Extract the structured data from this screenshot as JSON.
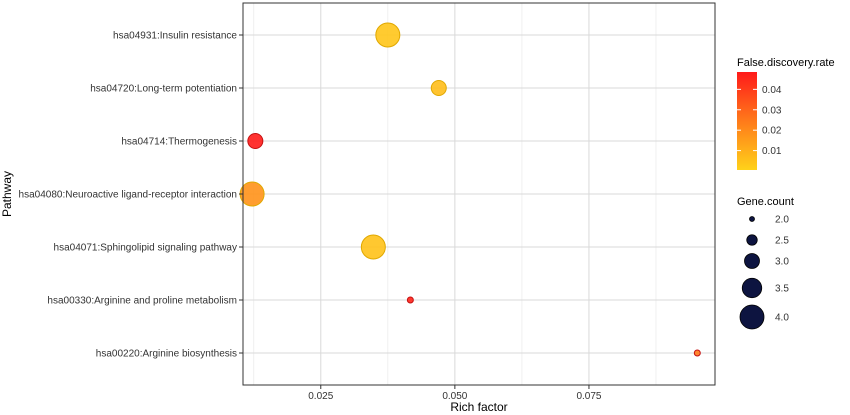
{
  "chart_data": {
    "type": "scatter",
    "xlabel": "Rich factor",
    "ylabel": "Pathway",
    "xlim": [
      0.0105,
      0.0985
    ],
    "x_ticks": [
      0.025,
      0.05,
      0.075
    ],
    "x_tick_labels": [
      "0.025",
      "0.050",
      "0.075"
    ],
    "grid": true,
    "categories": [
      "hsa04931:Insulin resistance",
      "hsa04720:Long-term potentiation",
      "hsa04714:Thermogenesis",
      "hsa04080:Neuroactive ligand-receptor interaction",
      "hsa04071:Sphingolipid signaling pathway",
      "hsa00330:Arginine and proline metabolism",
      "hsa00220:Arginine biosynthesis"
    ],
    "points": [
      {
        "pathway": "hsa04931:Insulin resistance",
        "x": 0.0375,
        "gene_count": 4,
        "fdr": 0.004
      },
      {
        "pathway": "hsa04720:Long-term potentiation",
        "x": 0.047,
        "gene_count": 3,
        "fdr": 0.006
      },
      {
        "pathway": "hsa04714:Thermogenesis",
        "x": 0.0128,
        "gene_count": 3,
        "fdr": 0.048
      },
      {
        "pathway": "hsa04080:Neuroactive ligand-receptor interaction",
        "x": 0.0122,
        "gene_count": 4,
        "fdr": 0.018
      },
      {
        "pathway": "hsa04071:Sphingolipid signaling pathway",
        "x": 0.0348,
        "gene_count": 4,
        "fdr": 0.005
      },
      {
        "pathway": "hsa00330:Arginine and proline metabolism",
        "x": 0.0417,
        "gene_count": 2,
        "fdr": 0.046
      },
      {
        "pathway": "hsa00220:Arginine biosynthesis",
        "x": 0.0952,
        "gene_count": 2,
        "fdr": 0.025
      }
    ],
    "color_legend": {
      "title": "False.discovery.rate",
      "ticks": [
        0.01,
        0.02,
        0.03,
        0.04
      ],
      "tick_labels": [
        "0.01",
        "0.02",
        "0.03",
        "0.04"
      ],
      "range": [
        0.0005,
        0.0485
      ],
      "low_color": "#ffd21a",
      "high_color": "#ff1a1a"
    },
    "size_legend": {
      "title": "Gene.count",
      "values": [
        2.0,
        2.5,
        3.0,
        3.5,
        4.0
      ],
      "labels": [
        "2.0",
        "2.5",
        "3.0",
        "3.5",
        "4.0"
      ],
      "color": "#0d1440"
    },
    "legend_position": "right"
  }
}
